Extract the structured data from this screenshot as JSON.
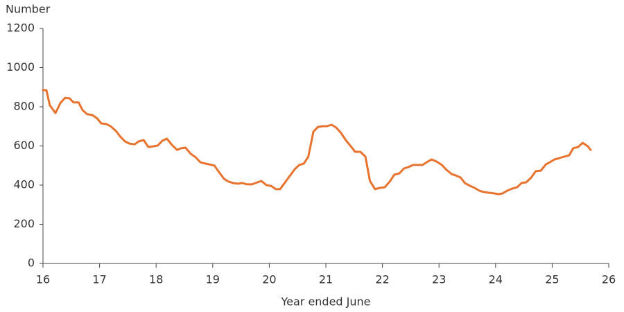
{
  "chart_data": {
    "type": "line",
    "y_label": "Number",
    "x_label": "Year ended June",
    "color": "#e8732e",
    "xlim": [
      16,
      26
    ],
    "xticks": [
      16,
      17,
      18,
      19,
      20,
      21,
      22,
      23,
      24,
      25,
      26
    ],
    "ylim": [
      0,
      1200
    ],
    "yticks": [
      0,
      200,
      400,
      600,
      800,
      1000,
      1200
    ],
    "grid": false,
    "x": [
      16.0,
      16.06,
      16.12,
      16.22,
      16.31,
      16.39,
      16.47,
      16.54,
      16.63,
      16.7,
      16.78,
      16.87,
      16.96,
      17.03,
      17.12,
      17.2,
      17.29,
      17.36,
      17.45,
      17.53,
      17.62,
      17.69,
      17.78,
      17.86,
      17.95,
      18.03,
      18.11,
      18.19,
      18.28,
      18.37,
      18.44,
      18.52,
      18.61,
      18.7,
      18.78,
      18.87,
      18.94,
      19.03,
      19.11,
      19.2,
      19.28,
      19.37,
      19.45,
      19.52,
      19.61,
      19.69,
      19.79,
      19.86,
      19.95,
      20.03,
      20.12,
      20.19,
      20.28,
      20.36,
      20.45,
      20.53,
      20.61,
      20.69,
      20.78,
      20.86,
      20.94,
      21.02,
      21.1,
      21.18,
      21.27,
      21.35,
      21.45,
      21.52,
      21.61,
      21.7,
      21.78,
      21.87,
      21.95,
      22.04,
      22.13,
      22.21,
      22.3,
      22.38,
      22.46,
      22.54,
      22.63,
      22.71,
      22.8,
      22.87,
      22.96,
      23.05,
      23.12,
      23.22,
      23.29,
      23.38,
      23.46,
      23.55,
      23.63,
      23.71,
      23.79,
      23.88,
      23.97,
      24.05,
      24.12,
      24.21,
      24.29,
      24.38,
      24.46,
      24.54,
      24.63,
      24.71,
      24.8,
      24.89,
      24.96,
      25.04,
      25.13,
      25.21,
      25.3,
      25.37,
      25.46,
      25.54,
      25.63,
      25.68
    ],
    "values": [
      885,
      885,
      808,
      768,
      820,
      845,
      843,
      822,
      822,
      783,
      762,
      758,
      740,
      715,
      712,
      700,
      676,
      650,
      623,
      612,
      608,
      623,
      630,
      595,
      598,
      602,
      627,
      637,
      605,
      580,
      588,
      591,
      560,
      542,
      517,
      510,
      506,
      500,
      467,
      432,
      418,
      410,
      407,
      411,
      404,
      404,
      414,
      421,
      400,
      396,
      379,
      379,
      414,
      446,
      481,
      503,
      510,
      545,
      673,
      697,
      701,
      701,
      708,
      694,
      666,
      630,
      595,
      570,
      570,
      545,
      421,
      379,
      386,
      389,
      418,
      453,
      460,
      485,
      492,
      503,
      503,
      503,
      520,
      531,
      520,
      503,
      481,
      457,
      450,
      439,
      410,
      396,
      386,
      372,
      365,
      361,
      358,
      354,
      357,
      372,
      382,
      389,
      411,
      414,
      439,
      471,
      474,
      506,
      517,
      531,
      538,
      545,
      552,
      588,
      595,
      616,
      598,
      580
    ]
  }
}
